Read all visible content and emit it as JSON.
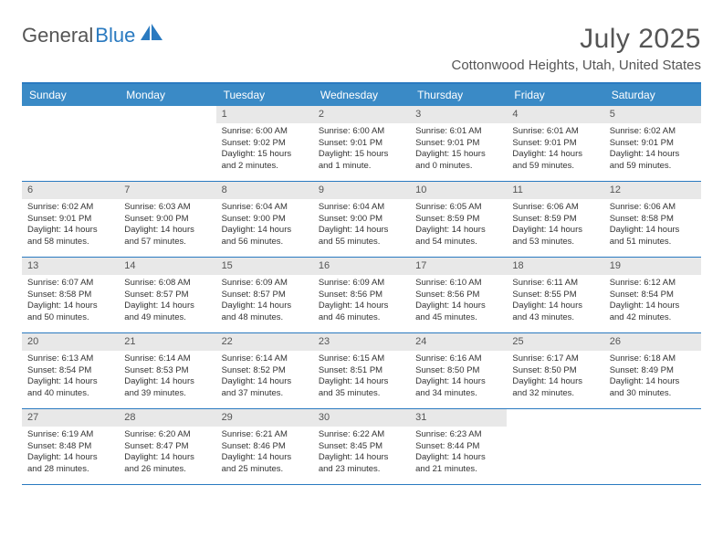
{
  "logo": {
    "text_gray": "General",
    "text_blue": "Blue"
  },
  "title": "July 2025",
  "location": "Cottonwood Heights, Utah, United States",
  "colors": {
    "header_bg": "#3a8ac6",
    "border": "#2a7ac0",
    "daynum_bg": "#e8e8e8",
    "text": "#333333",
    "muted": "#555555",
    "white": "#ffffff"
  },
  "weekdays": [
    "Sunday",
    "Monday",
    "Tuesday",
    "Wednesday",
    "Thursday",
    "Friday",
    "Saturday"
  ],
  "weeks": [
    [
      null,
      null,
      {
        "n": "1",
        "sr": "Sunrise: 6:00 AM",
        "ss": "Sunset: 9:02 PM",
        "d1": "Daylight: 15 hours",
        "d2": "and 2 minutes."
      },
      {
        "n": "2",
        "sr": "Sunrise: 6:00 AM",
        "ss": "Sunset: 9:01 PM",
        "d1": "Daylight: 15 hours",
        "d2": "and 1 minute."
      },
      {
        "n": "3",
        "sr": "Sunrise: 6:01 AM",
        "ss": "Sunset: 9:01 PM",
        "d1": "Daylight: 15 hours",
        "d2": "and 0 minutes."
      },
      {
        "n": "4",
        "sr": "Sunrise: 6:01 AM",
        "ss": "Sunset: 9:01 PM",
        "d1": "Daylight: 14 hours",
        "d2": "and 59 minutes."
      },
      {
        "n": "5",
        "sr": "Sunrise: 6:02 AM",
        "ss": "Sunset: 9:01 PM",
        "d1": "Daylight: 14 hours",
        "d2": "and 59 minutes."
      }
    ],
    [
      {
        "n": "6",
        "sr": "Sunrise: 6:02 AM",
        "ss": "Sunset: 9:01 PM",
        "d1": "Daylight: 14 hours",
        "d2": "and 58 minutes."
      },
      {
        "n": "7",
        "sr": "Sunrise: 6:03 AM",
        "ss": "Sunset: 9:00 PM",
        "d1": "Daylight: 14 hours",
        "d2": "and 57 minutes."
      },
      {
        "n": "8",
        "sr": "Sunrise: 6:04 AM",
        "ss": "Sunset: 9:00 PM",
        "d1": "Daylight: 14 hours",
        "d2": "and 56 minutes."
      },
      {
        "n": "9",
        "sr": "Sunrise: 6:04 AM",
        "ss": "Sunset: 9:00 PM",
        "d1": "Daylight: 14 hours",
        "d2": "and 55 minutes."
      },
      {
        "n": "10",
        "sr": "Sunrise: 6:05 AM",
        "ss": "Sunset: 8:59 PM",
        "d1": "Daylight: 14 hours",
        "d2": "and 54 minutes."
      },
      {
        "n": "11",
        "sr": "Sunrise: 6:06 AM",
        "ss": "Sunset: 8:59 PM",
        "d1": "Daylight: 14 hours",
        "d2": "and 53 minutes."
      },
      {
        "n": "12",
        "sr": "Sunrise: 6:06 AM",
        "ss": "Sunset: 8:58 PM",
        "d1": "Daylight: 14 hours",
        "d2": "and 51 minutes."
      }
    ],
    [
      {
        "n": "13",
        "sr": "Sunrise: 6:07 AM",
        "ss": "Sunset: 8:58 PM",
        "d1": "Daylight: 14 hours",
        "d2": "and 50 minutes."
      },
      {
        "n": "14",
        "sr": "Sunrise: 6:08 AM",
        "ss": "Sunset: 8:57 PM",
        "d1": "Daylight: 14 hours",
        "d2": "and 49 minutes."
      },
      {
        "n": "15",
        "sr": "Sunrise: 6:09 AM",
        "ss": "Sunset: 8:57 PM",
        "d1": "Daylight: 14 hours",
        "d2": "and 48 minutes."
      },
      {
        "n": "16",
        "sr": "Sunrise: 6:09 AM",
        "ss": "Sunset: 8:56 PM",
        "d1": "Daylight: 14 hours",
        "d2": "and 46 minutes."
      },
      {
        "n": "17",
        "sr": "Sunrise: 6:10 AM",
        "ss": "Sunset: 8:56 PM",
        "d1": "Daylight: 14 hours",
        "d2": "and 45 minutes."
      },
      {
        "n": "18",
        "sr": "Sunrise: 6:11 AM",
        "ss": "Sunset: 8:55 PM",
        "d1": "Daylight: 14 hours",
        "d2": "and 43 minutes."
      },
      {
        "n": "19",
        "sr": "Sunrise: 6:12 AM",
        "ss": "Sunset: 8:54 PM",
        "d1": "Daylight: 14 hours",
        "d2": "and 42 minutes."
      }
    ],
    [
      {
        "n": "20",
        "sr": "Sunrise: 6:13 AM",
        "ss": "Sunset: 8:54 PM",
        "d1": "Daylight: 14 hours",
        "d2": "and 40 minutes."
      },
      {
        "n": "21",
        "sr": "Sunrise: 6:14 AM",
        "ss": "Sunset: 8:53 PM",
        "d1": "Daylight: 14 hours",
        "d2": "and 39 minutes."
      },
      {
        "n": "22",
        "sr": "Sunrise: 6:14 AM",
        "ss": "Sunset: 8:52 PM",
        "d1": "Daylight: 14 hours",
        "d2": "and 37 minutes."
      },
      {
        "n": "23",
        "sr": "Sunrise: 6:15 AM",
        "ss": "Sunset: 8:51 PM",
        "d1": "Daylight: 14 hours",
        "d2": "and 35 minutes."
      },
      {
        "n": "24",
        "sr": "Sunrise: 6:16 AM",
        "ss": "Sunset: 8:50 PM",
        "d1": "Daylight: 14 hours",
        "d2": "and 34 minutes."
      },
      {
        "n": "25",
        "sr": "Sunrise: 6:17 AM",
        "ss": "Sunset: 8:50 PM",
        "d1": "Daylight: 14 hours",
        "d2": "and 32 minutes."
      },
      {
        "n": "26",
        "sr": "Sunrise: 6:18 AM",
        "ss": "Sunset: 8:49 PM",
        "d1": "Daylight: 14 hours",
        "d2": "and 30 minutes."
      }
    ],
    [
      {
        "n": "27",
        "sr": "Sunrise: 6:19 AM",
        "ss": "Sunset: 8:48 PM",
        "d1": "Daylight: 14 hours",
        "d2": "and 28 minutes."
      },
      {
        "n": "28",
        "sr": "Sunrise: 6:20 AM",
        "ss": "Sunset: 8:47 PM",
        "d1": "Daylight: 14 hours",
        "d2": "and 26 minutes."
      },
      {
        "n": "29",
        "sr": "Sunrise: 6:21 AM",
        "ss": "Sunset: 8:46 PM",
        "d1": "Daylight: 14 hours",
        "d2": "and 25 minutes."
      },
      {
        "n": "30",
        "sr": "Sunrise: 6:22 AM",
        "ss": "Sunset: 8:45 PM",
        "d1": "Daylight: 14 hours",
        "d2": "and 23 minutes."
      },
      {
        "n": "31",
        "sr": "Sunrise: 6:23 AM",
        "ss": "Sunset: 8:44 PM",
        "d1": "Daylight: 14 hours",
        "d2": "and 21 minutes."
      },
      null,
      null
    ]
  ]
}
